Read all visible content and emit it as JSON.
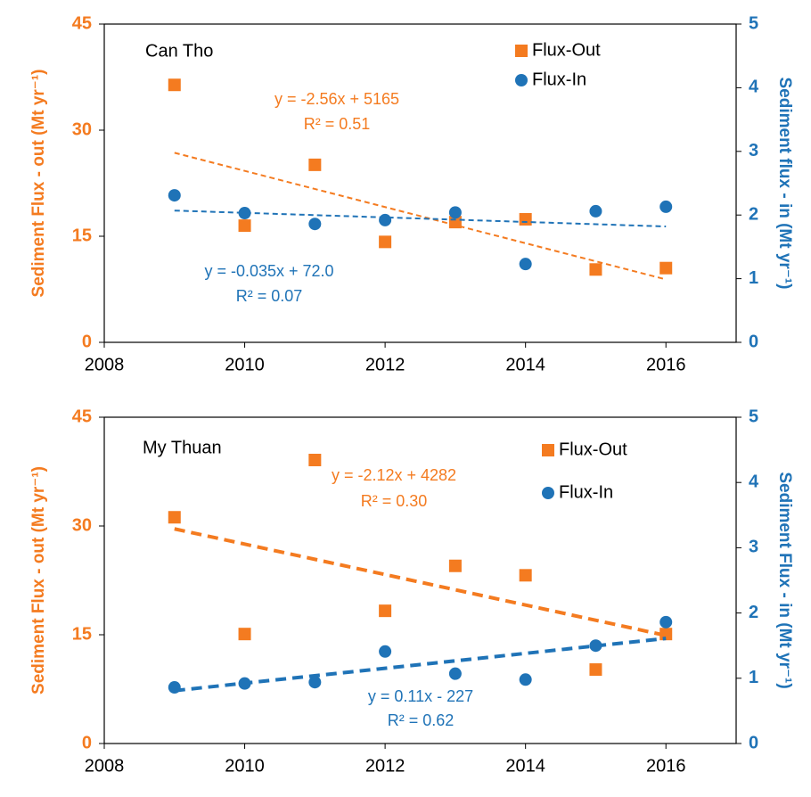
{
  "chart_data": [
    {
      "type": "scatter",
      "title": "Can Tho",
      "x": [
        2009,
        2010,
        2011,
        2012,
        2013,
        2014,
        2015,
        2016
      ],
      "xlim": [
        2008,
        2017
      ],
      "xticks": [
        2008,
        2010,
        2012,
        2014,
        2016
      ],
      "ylim": [
        0,
        45
      ],
      "yticks": [
        0,
        15,
        30,
        45
      ],
      "y2lim": [
        0,
        5
      ],
      "y2ticks": [
        0,
        1,
        2,
        3,
        4,
        5
      ],
      "ylabel": "Sediment Flux - out (Mt yr⁻¹)",
      "ylabel_color": "#f47b20",
      "y2label": "Sediment flux - in (Mt yr⁻¹)",
      "y2label_color": "#1f73b7",
      "series": [
        {
          "name": "Flux-Out",
          "color": "#f47b20",
          "marker": "square",
          "axis": "y",
          "values": [
            36.4,
            16.5,
            25.1,
            14.2,
            17.0,
            17.4,
            10.3,
            10.5
          ],
          "trend": {
            "x": [
              2009,
              2016
            ],
            "y": [
              26.8,
              8.9
            ]
          }
        },
        {
          "name": "Flux-In",
          "color": "#1f73b7",
          "marker": "circle",
          "axis": "y2",
          "values": [
            2.31,
            2.03,
            1.86,
            1.92,
            2.04,
            1.23,
            2.06,
            2.13
          ],
          "trend": {
            "x": [
              2009,
              2016
            ],
            "y": [
              2.07,
              1.82
            ]
          }
        }
      ],
      "annotations": [
        {
          "text": "y = -2.56x + 5165",
          "color": "#f47b20"
        },
        {
          "text": "R² = 0.51",
          "color": "#f47b20"
        },
        {
          "text": "y = -0.035x + 72.0",
          "color": "#1f73b7"
        },
        {
          "text": "R² = 0.07",
          "color": "#1f73b7"
        }
      ]
    },
    {
      "type": "scatter",
      "title": "My Thuan",
      "x": [
        2009,
        2010,
        2011,
        2012,
        2013,
        2014,
        2015,
        2016
      ],
      "xlim": [
        2008,
        2017
      ],
      "xticks": [
        2008,
        2010,
        2012,
        2014,
        2016
      ],
      "ylim": [
        0,
        45
      ],
      "yticks": [
        0,
        15,
        30,
        45
      ],
      "y2lim": [
        0,
        5
      ],
      "y2ticks": [
        0,
        1,
        2,
        3,
        4,
        5
      ],
      "ylabel": "Sediment Flux - out (Mt yr⁻¹)",
      "ylabel_color": "#f47b20",
      "y2label": "Sediment Flux - in (Mt yr⁻¹)",
      "y2label_color": "#1f73b7",
      "series": [
        {
          "name": "Flux-Out",
          "color": "#f47b20",
          "marker": "square",
          "axis": "y",
          "values": [
            31.2,
            15.1,
            39.1,
            18.3,
            24.5,
            23.2,
            10.2,
            15.1
          ],
          "trend": {
            "x": [
              2009,
              2016
            ],
            "y": [
              29.6,
              14.9
            ]
          }
        },
        {
          "name": "Flux-In",
          "color": "#1f73b7",
          "marker": "circle",
          "axis": "y2",
          "values": [
            0.86,
            0.92,
            0.94,
            1.41,
            1.07,
            0.98,
            1.5,
            1.86
          ],
          "trend": {
            "x": [
              2009,
              2016
            ],
            "y": [
              0.81,
              1.61
            ]
          }
        }
      ],
      "annotations": [
        {
          "text": "y = -2.12x + 4282",
          "color": "#f47b20"
        },
        {
          "text": "R² = 0.30",
          "color": "#f47b20"
        },
        {
          "text": "y = 0.11x - 227",
          "color": "#1f73b7"
        },
        {
          "text": "R² = 0.62",
          "color": "#1f73b7"
        }
      ]
    }
  ]
}
